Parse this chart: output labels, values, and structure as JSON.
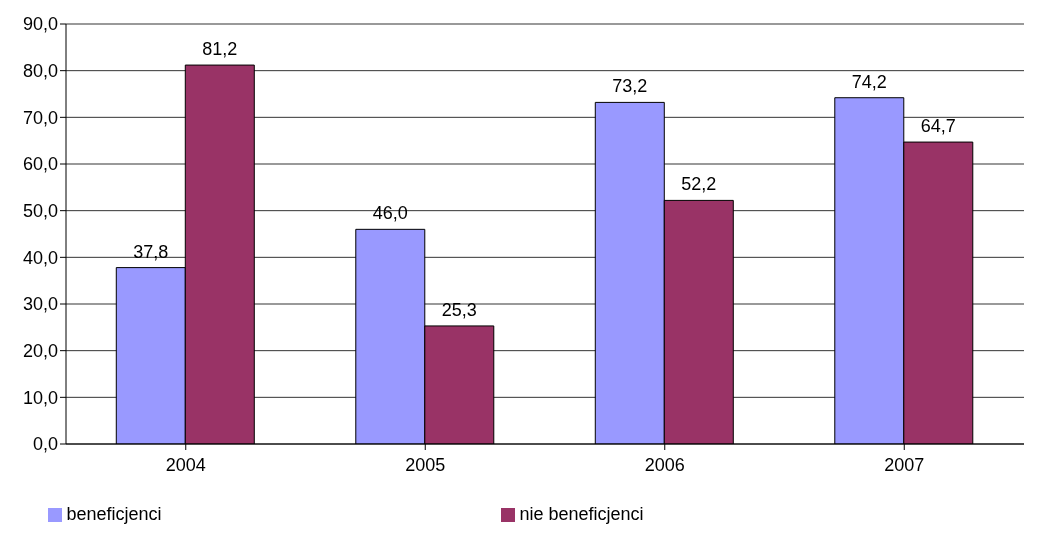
{
  "chart_data": {
    "type": "bar",
    "categories": [
      "2004",
      "2005",
      "2006",
      "2007"
    ],
    "series": [
      {
        "name": "beneficjenci",
        "color": "#9999ff",
        "values": [
          37.8,
          46.0,
          73.2,
          74.2
        ],
        "value_labels": [
          "37,8",
          "46,0",
          "73,2",
          "74,2"
        ]
      },
      {
        "name": "nie beneficjenci",
        "color": "#993366",
        "values": [
          81.2,
          25.3,
          52.2,
          64.7
        ],
        "value_labels": [
          "81,2",
          "25,3",
          "52,2",
          "64,7"
        ]
      }
    ],
    "ylim": [
      0,
      90
    ],
    "yticks": [
      {
        "value": 0,
        "label": "0,0"
      },
      {
        "value": 10,
        "label": "10,0"
      },
      {
        "value": 20,
        "label": "20,0"
      },
      {
        "value": 30,
        "label": "30,0"
      },
      {
        "value": 40,
        "label": "40,0"
      },
      {
        "value": 50,
        "label": "50,0"
      },
      {
        "value": 60,
        "label": "60,0"
      },
      {
        "value": 70,
        "label": "70,0"
      },
      {
        "value": 80,
        "label": "80,0"
      },
      {
        "value": 90,
        "label": "90,0"
      }
    ],
    "grid": "y",
    "legend": "bottom"
  }
}
